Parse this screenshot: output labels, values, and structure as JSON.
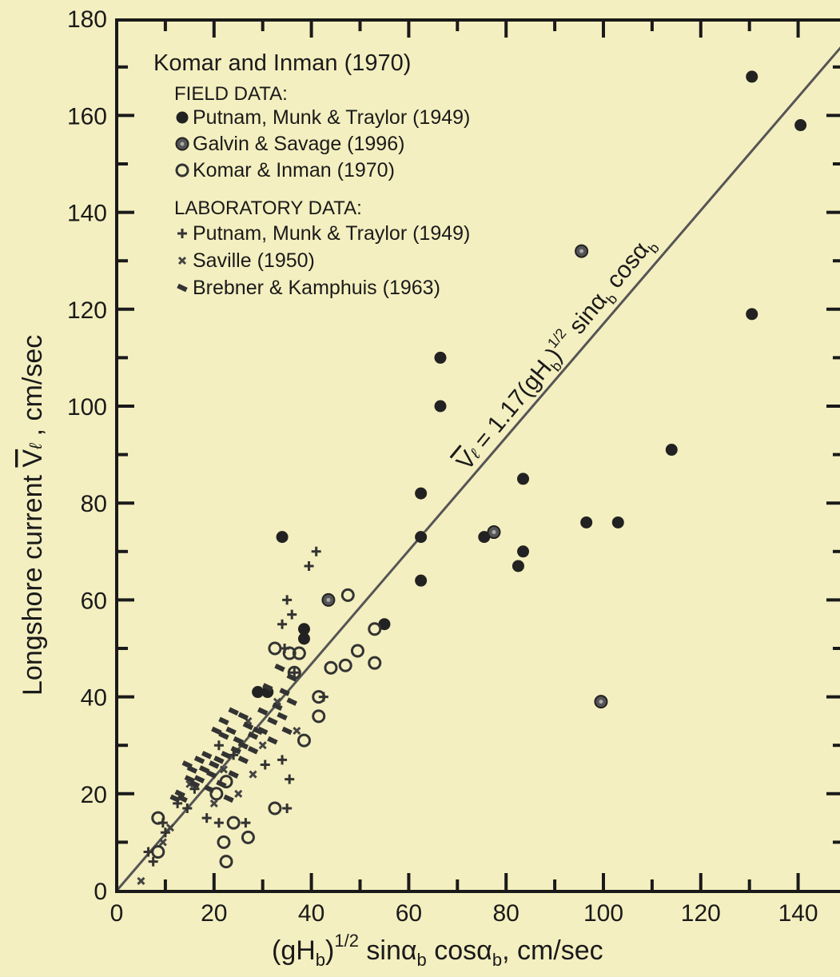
{
  "page": {
    "background": "#f4efc0",
    "ink": "#1a1a1a"
  },
  "chart_data": {
    "type": "scatter",
    "title": "Komar and Inman (1970)",
    "xlabel_base": "(gH",
    "xlabel_sub_b": "b",
    "xlabel_sup": "1/2",
    "xlabel_rest": " sinα",
    "xlabel_sub_b2": "b",
    "xlabel_rest2": " cosα",
    "xlabel_sub_b3": "b",
    "xlabel_tail": ", cm/sec",
    "ylabel_start": "Longshore current ",
    "ylabel_v": "V",
    "ylabel_l": "ℓ",
    "ylabel_tail": " , cm/sec",
    "xlim": [
      0,
      150
    ],
    "ylim": [
      0,
      180
    ],
    "x_ticks": [
      0,
      20,
      40,
      60,
      80,
      100,
      120,
      140
    ],
    "y_ticks": [
      0,
      20,
      40,
      60,
      80,
      100,
      120,
      140,
      160,
      180
    ],
    "line": {
      "slope": 1.17,
      "label_v": "V",
      "label_l": "ℓ",
      "label_eq": " = 1.17(gH",
      "label_b": "b",
      "label_close": ")",
      "label_sup": "1/2",
      "label_sin": " sinα",
      "label_b2": "b",
      "label_cos": " cosα",
      "label_b3": "b"
    },
    "legend": {
      "position": "top-left",
      "field_header": "FIELD DATA:",
      "lab_header": "LABORATORY DATA:",
      "entries": [
        {
          "label": "Putnam, Munk & Traylor (1949)",
          "marker": "filled-circle"
        },
        {
          "label": "Galvin & Savage (1996)",
          "marker": "dotted-circle"
        },
        {
          "label": "Komar & Inman (1970)",
          "marker": "open-circle"
        },
        {
          "label": "Putnam, Munk & Traylor (1949)",
          "marker": "plus"
        },
        {
          "label": "Saville (1950)",
          "marker": "x-cross"
        },
        {
          "label": "Brebner & Kamphuis (1963)",
          "marker": "dash"
        }
      ]
    },
    "series": [
      {
        "name": "Putnam, Munk & Traylor (1949)",
        "marker": "filled-circle",
        "points": [
          [
            130.5,
            168
          ],
          [
            140.5,
            158
          ],
          [
            130.5,
            119
          ],
          [
            66.5,
            110
          ],
          [
            66.5,
            100
          ],
          [
            114,
            91
          ],
          [
            83.5,
            85
          ],
          [
            62.5,
            82
          ],
          [
            34,
            73
          ],
          [
            62.5,
            73
          ],
          [
            75.5,
            73
          ],
          [
            96.5,
            76
          ],
          [
            103,
            76
          ],
          [
            83.5,
            70
          ],
          [
            82.5,
            67
          ],
          [
            62.5,
            64
          ],
          [
            55,
            55
          ],
          [
            38.5,
            54
          ],
          [
            38.5,
            52
          ],
          [
            31,
            41
          ],
          [
            29,
            41
          ]
        ]
      },
      {
        "name": "Galvin & Savage (1996)",
        "marker": "dotted-circle",
        "points": [
          [
            95.5,
            132
          ],
          [
            77.5,
            74
          ],
          [
            43.5,
            60
          ],
          [
            99.5,
            39
          ]
        ]
      },
      {
        "name": "Komar & Inman (1970)",
        "marker": "open-circle",
        "points": [
          [
            47.5,
            61
          ],
          [
            53,
            54
          ],
          [
            49.5,
            49.5
          ],
          [
            53,
            47
          ],
          [
            47,
            46.5
          ],
          [
            44,
            46
          ],
          [
            32.5,
            50
          ],
          [
            35.5,
            49
          ],
          [
            37.5,
            49
          ],
          [
            36.5,
            45
          ],
          [
            41.5,
            40
          ],
          [
            41.5,
            36
          ],
          [
            38.5,
            31
          ],
          [
            32.5,
            17
          ],
          [
            24,
            14
          ],
          [
            27,
            11
          ],
          [
            22,
            10
          ],
          [
            22.5,
            6
          ],
          [
            8.5,
            15
          ],
          [
            8.5,
            8
          ],
          [
            20.5,
            20
          ],
          [
            22.5,
            22.5
          ]
        ]
      },
      {
        "name": "Putnam, Munk & Traylor (1949)",
        "marker": "plus",
        "points": [
          [
            41,
            70
          ],
          [
            39.5,
            67
          ],
          [
            35,
            60
          ],
          [
            34,
            55
          ],
          [
            36,
            57
          ],
          [
            34.5,
            50
          ],
          [
            36.5,
            45
          ],
          [
            42.5,
            40
          ],
          [
            34,
            27
          ],
          [
            35.5,
            23
          ],
          [
            35,
            17
          ],
          [
            26.5,
            14
          ],
          [
            21,
            14
          ],
          [
            18.5,
            15
          ],
          [
            14.5,
            17
          ],
          [
            9.5,
            14
          ],
          [
            10,
            12
          ],
          [
            6.5,
            8
          ],
          [
            7.5,
            6
          ],
          [
            30.5,
            26
          ],
          [
            24,
            28
          ],
          [
            21,
            30
          ],
          [
            16,
            21
          ],
          [
            12.5,
            18
          ]
        ]
      },
      {
        "name": "Saville (1950)",
        "marker": "x-cross",
        "points": [
          [
            5,
            2
          ],
          [
            9.5,
            10
          ],
          [
            11,
            13
          ],
          [
            22,
            25
          ],
          [
            27,
            35
          ],
          [
            37,
            33
          ],
          [
            30,
            30
          ],
          [
            25,
            20
          ],
          [
            20,
            18
          ],
          [
            15,
            22
          ],
          [
            28,
            24
          ],
          [
            33,
            39
          ]
        ]
      },
      {
        "name": "Brebner & Kamphuis (1963)",
        "marker": "dash",
        "points": [
          [
            36,
            44
          ],
          [
            34.5,
            41
          ],
          [
            33,
            38
          ],
          [
            32,
            35
          ],
          [
            30,
            37
          ],
          [
            29,
            33
          ],
          [
            28,
            32
          ],
          [
            27,
            34
          ],
          [
            26,
            30
          ],
          [
            25,
            31
          ],
          [
            24.5,
            29
          ],
          [
            23.5,
            33
          ],
          [
            22,
            32
          ],
          [
            22.5,
            28
          ],
          [
            21,
            27
          ],
          [
            20,
            26
          ],
          [
            19.5,
            24
          ],
          [
            18,
            25
          ],
          [
            17,
            27
          ],
          [
            16,
            22
          ],
          [
            15,
            23
          ],
          [
            14.5,
            26
          ],
          [
            13.5,
            19
          ],
          [
            13,
            20
          ],
          [
            12,
            19
          ],
          [
            24,
            24
          ],
          [
            26,
            27
          ],
          [
            28,
            29
          ],
          [
            30,
            33
          ],
          [
            32,
            31
          ],
          [
            34,
            36
          ],
          [
            35,
            33
          ],
          [
            36,
            39
          ],
          [
            19,
            21
          ],
          [
            18.5,
            28
          ],
          [
            20.5,
            33
          ],
          [
            22,
            35
          ],
          [
            24,
            37
          ],
          [
            26,
            36
          ],
          [
            31,
            42
          ],
          [
            33.5,
            46
          ],
          [
            21.5,
            22
          ],
          [
            23,
            19
          ],
          [
            17,
            23
          ],
          [
            15.5,
            25
          ]
        ]
      }
    ]
  }
}
